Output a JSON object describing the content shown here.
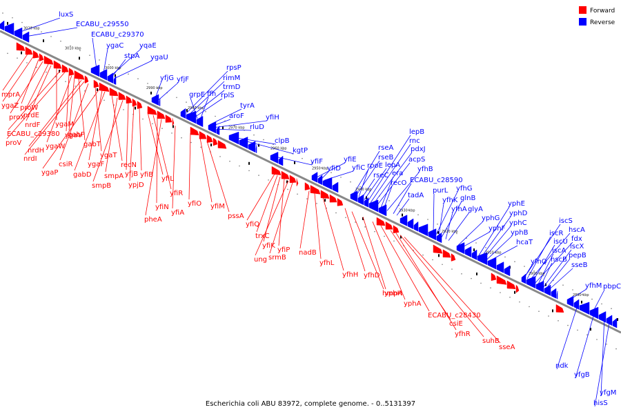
{
  "caption": "Escherichia coli ABU 83972, complete genome. - 0..5131397",
  "legend": [
    {
      "label": "Forward",
      "color": "#ff0000"
    },
    {
      "label": "Reverse",
      "color": "#0000ff"
    }
  ],
  "colors": {
    "forward": "#ff0000",
    "reverse": "#0000ff",
    "track": "#888888",
    "tick": "#000000"
  },
  "scale_labels": [
    "3020 kbp",
    "3010 kbp",
    "3000 kbp",
    "2990 kbp",
    "2980 kbp",
    "2970 kbp",
    "2960 kbp",
    "2950 kbp",
    "2940 kbp",
    "2930 kbp",
    "2920 kbp",
    "2910 kbp",
    "2900 kbp",
    "2890 kbp"
  ],
  "reverse_labels": [
    "luxS",
    "ECABU_c29550",
    "ECABU_c29370",
    "ygaC",
    "yqaE",
    "stpA",
    "ygaU",
    "yfjG",
    "yfjF",
    "rpsP",
    "rimM",
    "trmD",
    "rplS",
    "grpE",
    "ffh",
    "tyrA",
    "aroF",
    "yfiH",
    "rluD",
    "clpB",
    "kgtP",
    "yfiF",
    "yfiE",
    "yfiD",
    "yfiC",
    "rseA",
    "rseB",
    "rpoE",
    "rseC",
    "lepA",
    "lepB",
    "rnc",
    "pdxJ",
    "acpS",
    "era",
    "recO",
    "yfhB",
    "ECABU_c28590",
    "tadA",
    "purL",
    "yfhG",
    "yfhK",
    "glnB",
    "yfhA",
    "glyA",
    "yphG",
    "yphF",
    "yphE",
    "yphD",
    "yphC",
    "yphB",
    "hcaT",
    "iscS",
    "iscR",
    "hscA",
    "iscU",
    "fdx",
    "iscA",
    "hscB",
    "iscX",
    "pepB",
    "sseB",
    "yfhQ",
    "yfhM",
    "pbpC",
    "ndk",
    "yfgB",
    "yfgM",
    "hisS"
  ],
  "forward_labels": [
    "mprA",
    "ygaZ",
    "proW",
    "proX",
    "nrdE",
    "nrdF",
    "ygaM",
    "ECABU_c29380",
    "proV",
    "ygaV",
    "ygaW",
    "gabP",
    "gabT",
    "nrdH",
    "nrdI",
    "csiR",
    "ygaT",
    "ygaP",
    "ygaF",
    "gabD",
    "recN",
    "smpA",
    "smpB",
    "yfjB",
    "ypjD",
    "yfiB",
    "yfiL",
    "yfiR",
    "yfiN",
    "pheA",
    "yfiA",
    "yfiO",
    "yfiM",
    "pssA",
    "yfiQ",
    "trxC",
    "yfiK",
    "yfiP",
    "ung",
    "srmB",
    "nadB",
    "yfhL",
    "yfhH",
    "yfhD",
    "hmpA",
    "yphH",
    "yphA",
    "ECABU_c28430",
    "csiE",
    "yfhR",
    "suhB",
    "sseA"
  ]
}
